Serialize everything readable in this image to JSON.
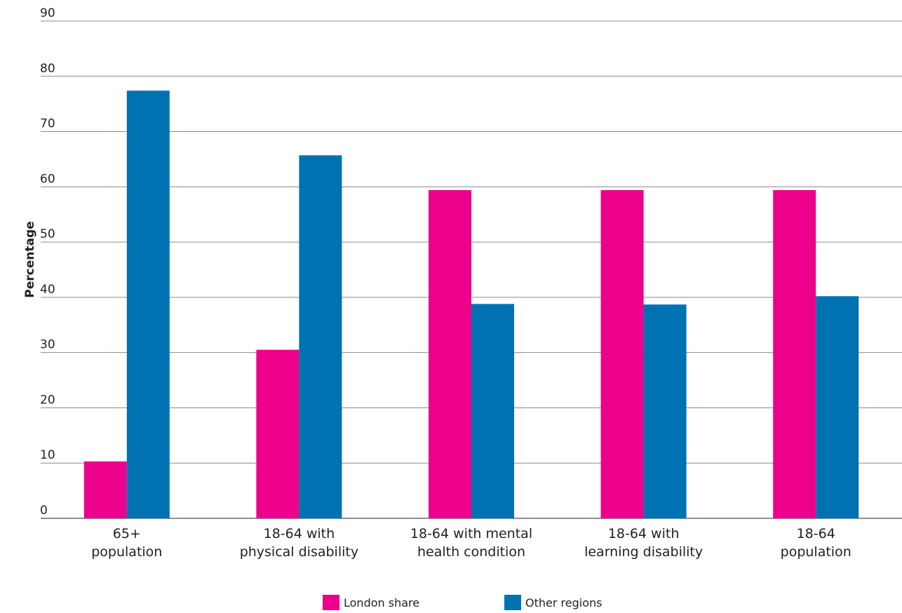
{
  "chart_data": {
    "type": "bar",
    "ylabel": "Percentage",
    "xlabel": "",
    "title": "",
    "ylim": [
      0,
      90
    ],
    "yticks": [
      0,
      10,
      20,
      30,
      40,
      50,
      60,
      70,
      80,
      90
    ],
    "grid": true,
    "legend_placement": "bottom-center",
    "categories": [
      [
        "65+",
        "population"
      ],
      [
        "18-64 with",
        "physical disability"
      ],
      [
        "18-64 with mental",
        "health condition"
      ],
      [
        "18-64 with",
        "learning disability"
      ],
      [
        "18-64",
        "population"
      ]
    ],
    "series": [
      {
        "name": "London share",
        "color": "#ec008c",
        "values": [
          10.3,
          30.5,
          59.4,
          59.4,
          59.4
        ]
      },
      {
        "name": "Other regions",
        "color": "#0072b1",
        "values": [
          77.4,
          65.7,
          38.8,
          38.7,
          40.2
        ]
      }
    ]
  }
}
